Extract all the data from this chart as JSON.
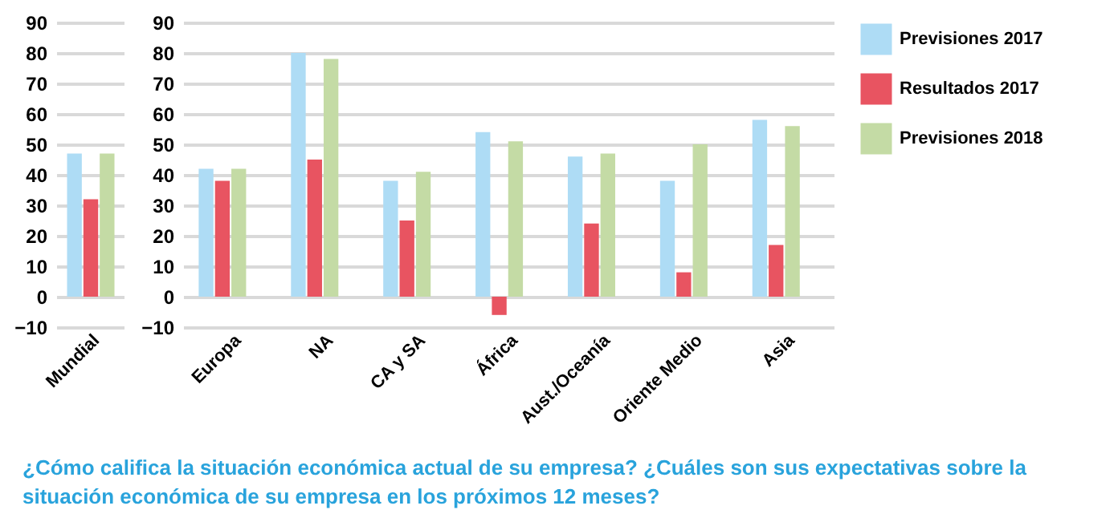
{
  "chart_data": [
    {
      "type": "bar",
      "categories": [
        "Mundial"
      ],
      "ylim": [
        -10,
        90
      ],
      "yticks": [
        -10,
        0,
        10,
        20,
        30,
        40,
        50,
        60,
        70,
        80,
        90
      ],
      "grid": "y",
      "legend": false,
      "series": [
        {
          "color": "#aedcf5",
          "values": [
            47
          ]
        },
        {
          "color": "#e85461",
          "values": [
            32
          ]
        },
        {
          "color": "#c4dba5",
          "values": [
            47
          ]
        }
      ]
    },
    {
      "type": "bar",
      "categories": [
        "Europa",
        "NA",
        "CA y SA",
        "África",
        "Aust./Oceanía",
        "Oriente Medio",
        "Asia"
      ],
      "ylim": [
        -10,
        90
      ],
      "yticks": [
        -10,
        0,
        10,
        20,
        30,
        40,
        50,
        60,
        70,
        80,
        90
      ],
      "grid": "y",
      "legend": "top right",
      "annotations": [
        "¿Cómo califica la situación económica actual de su empresa? ¿Cuáles son sus expectativas sobre la situación económica de su empresa en los próximos 12 meses?"
      ],
      "series": [
        {
          "name": "Previsiones 2017",
          "color": "#aedcf5",
          "values": [
            42,
            80,
            38,
            54,
            46,
            38,
            58
          ]
        },
        {
          "name": "Resultados 2017",
          "color": "#e85461",
          "values": [
            38,
            45,
            25,
            -6,
            24,
            8,
            17
          ]
        },
        {
          "name": "Previsiones 2018",
          "color": "#c4dba5",
          "values": [
            42,
            78,
            41,
            51,
            47,
            50,
            56
          ]
        }
      ]
    }
  ]
}
